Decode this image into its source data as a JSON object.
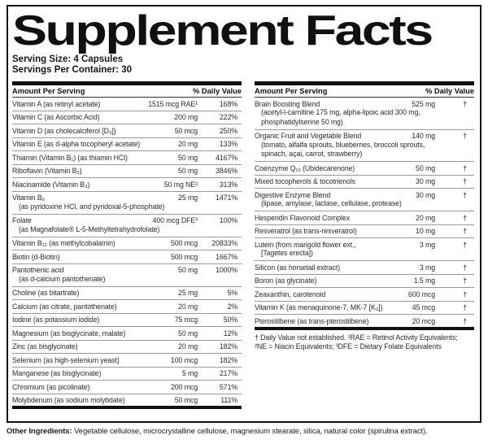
{
  "title": "Supplement Facts",
  "serving_info": {
    "serving_size": "Serving Size: 4 Capsules",
    "servings_per_container": "Servings Per Container: 30"
  },
  "table_headers": {
    "amount": "Amount Per Serving",
    "daily_value": "% Daily Value"
  },
  "left_table": {
    "rows": [
      {
        "name": "Vitamin A (as retinyl acetate)",
        "amount": "1515 mcg RAE¹",
        "dv": "168%"
      },
      {
        "name": "Vitamin C (as Ascorbic Acid)",
        "amount": "200 mg",
        "dv": "222%"
      },
      {
        "name": "Vitamin D (as cholecalciferol [D₃])",
        "amount": "50 mcg",
        "dv": "250%"
      },
      {
        "name": "Vitamin E (as d-alpha tocopheryl acetate)",
        "amount": "20 mg",
        "dv": "133%"
      },
      {
        "name": "Thiamin (Vitamin B₁) (as thiamin HCl)",
        "amount": "50 mg",
        "dv": "4167%"
      },
      {
        "name": "Riboflavin (Vitamin B₂)",
        "amount": "50 mg",
        "dv": "3846%"
      },
      {
        "name": "Niacinamide (Vitamin B₃)",
        "amount": "50 mg NE²",
        "dv": "313%"
      },
      {
        "name": "Vitamin B₆",
        "sub": [
          "(as pyridoxine HCl, and pyridoxal-5-phosphate)"
        ],
        "amount": "25 mg",
        "dv": "1471%"
      },
      {
        "name": "Folate",
        "sub": [
          "(as Magnafolate® L-5-Methyltetrahydrofolate)"
        ],
        "amount": "400 mcg DFE³",
        "dv": "100%"
      },
      {
        "name": "Vitamin B₁₂ (as methylcobalamin)",
        "amount": "500 mcg",
        "dv": "20833%"
      },
      {
        "name": "Biotin (d-Biotin)",
        "amount": "500 mcg",
        "dv": "1667%"
      },
      {
        "name": "Pantothenic acid",
        "sub": [
          "(as d-calcium pantothenate)"
        ],
        "amount": "50 mg",
        "dv": "1000%"
      },
      {
        "name": "Choline (as bitartrate)",
        "amount": "25 mg",
        "dv": "5%"
      },
      {
        "name": "Calcium (as citrate, pantothenate)",
        "amount": "20 mg",
        "dv": "2%"
      },
      {
        "name": "Iodine (as potassium iodide)",
        "amount": "75 mcg",
        "dv": "50%"
      },
      {
        "name": "Magnesium (as bisglycinate, malate)",
        "amount": "50 mg",
        "dv": "12%"
      },
      {
        "name": "Zinc (as bisglycinate)",
        "amount": "20 mg",
        "dv": "182%"
      },
      {
        "name": "Selenium (as high-selenium yeast)",
        "amount": "100 mcg",
        "dv": "182%"
      },
      {
        "name": "Manganese (as bisglycinate)",
        "amount": "5 mg",
        "dv": "217%"
      },
      {
        "name": "Chromium (as picolinate)",
        "amount": "200 mcg",
        "dv": "571%"
      },
      {
        "name": "Molybdenum (as sodium molybdate)",
        "amount": "50 mcg",
        "dv": "111%"
      }
    ]
  },
  "right_table": {
    "rows": [
      {
        "name": "Brain Boosting Blend",
        "sub": [
          "(acetyl-l-carnitine 175 mg, alpha-lipoic acid 300 mg,",
          "phosphatidylserine 50 mg)"
        ],
        "amount": "525 mg",
        "dv": "†"
      },
      {
        "name": "Organic Fruit and Vegetable Blend",
        "sub": [
          "(tomato, alfalfa sprouts, blueberries, broccoli sprouts,",
          "spinach, açai, carrot, strawberry)"
        ],
        "amount": "140 mg",
        "dv": "†"
      },
      {
        "name": "Coenzyme Q₁₀ (Ubidecarenone)",
        "amount": "50 mg",
        "dv": "†"
      },
      {
        "name": "Mixed tocopherols & tocotrienols",
        "amount": "30 mg",
        "dv": "†"
      },
      {
        "name": "Digestive Enzyme Blend",
        "sub": [
          "(lipase, amylase, lactase, cellulase, protease)"
        ],
        "amount": "30 mg",
        "dv": "†"
      },
      {
        "name": "Hesperidin Flavonoid Complex",
        "amount": "20 mg",
        "dv": "†"
      },
      {
        "name": "Resveratrol (as trans-resveratrol)",
        "amount": "10 mg",
        "dv": "†"
      },
      {
        "name": "Lutein (from marigold flower ext.,",
        "sub": [
          "[Tagetes erecta])"
        ],
        "amount": "3 mg",
        "dv": "†"
      },
      {
        "name": "Silicon (as horsetail extract)",
        "amount": "3 mg",
        "dv": "†"
      },
      {
        "name": "Boron (as glycinate)",
        "amount": "1.5 mg",
        "dv": "†"
      },
      {
        "name": "Zeaxanthin, carotenoid",
        "amount": "600 mcg",
        "dv": "†"
      },
      {
        "name": "Vitamin K (as menaquinone-7, MK-7 [K₂])",
        "amount": "45 mcg",
        "dv": "†"
      },
      {
        "name": "Pterostilbene (as trans-pterostilbene)",
        "amount": "20 mcg",
        "dv": "†"
      }
    ],
    "footnote_lines": [
      "† Daily Value not established. ¹RAE = Retinol Activity Equivalents;",
      "²NE = Niacin Equivalents; ³DFE = Dietary Folate Equivalents"
    ]
  },
  "other_ingredients": {
    "label": "Other Ingredients:",
    "text": " Vegetable cellulose, microcrystalline cellulose, magnesium stearate, silica, natural color (spirulina extract)."
  }
}
